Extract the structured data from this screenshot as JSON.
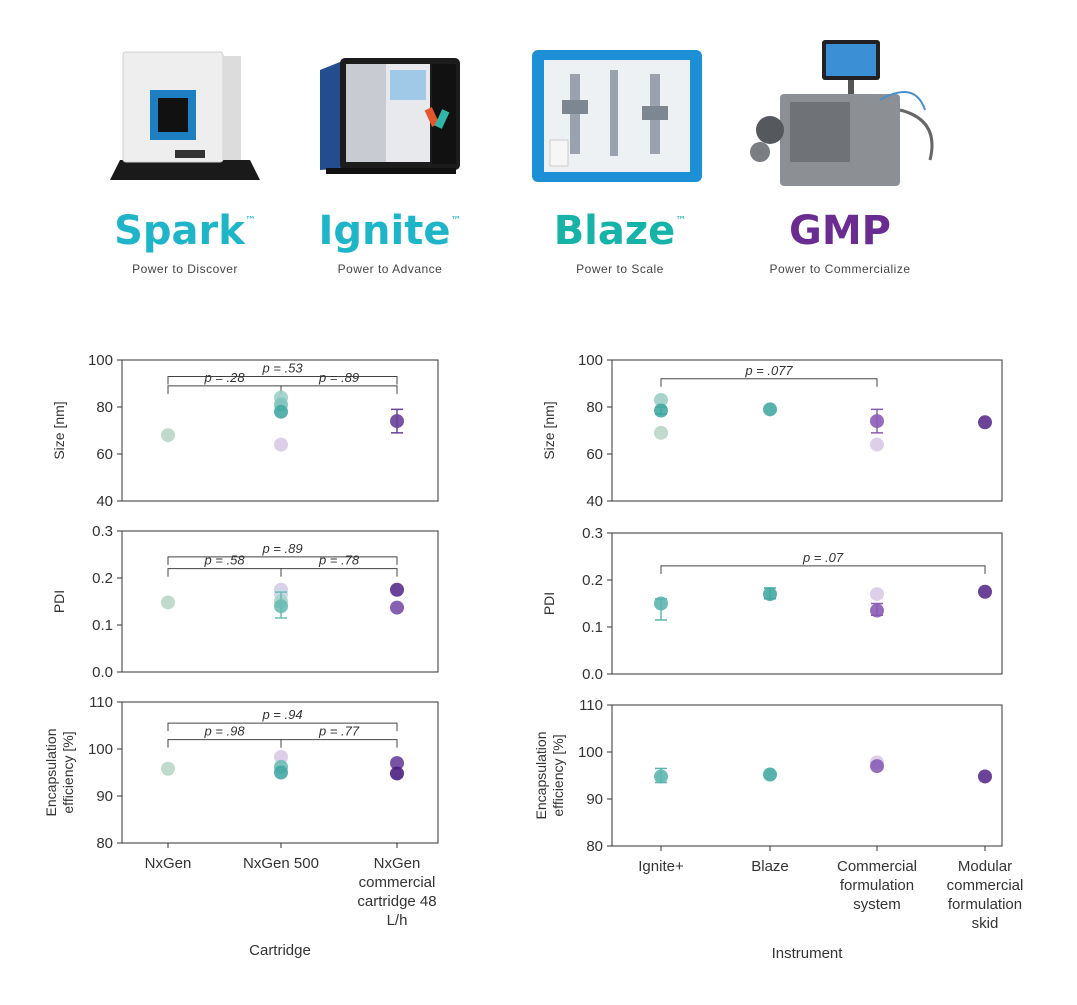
{
  "products": [
    {
      "name": "Spark",
      "tm": "™",
      "tagline": "Power to Discover",
      "color": "#1fb5c9",
      "icon": "benchtop-instrument-icon"
    },
    {
      "name": "Ignite",
      "tm": "™",
      "tagline": "Power to Advance",
      "color": "#1fb5c9",
      "icon": "mixing-instrument-icon"
    },
    {
      "name": "Blaze",
      "tm": "™",
      "tagline": "Power to Scale",
      "color": "#17b3a9",
      "icon": "scale-up-instrument-icon"
    },
    {
      "name": "GMP",
      "tm": "",
      "tagline": "Power to Commercialize",
      "color": "#6a2c91",
      "icon": "gmp-system-icon"
    }
  ],
  "chart_data": [
    {
      "type": "scatter",
      "ylabel": "Size [nm]",
      "ylim": [
        40,
        100
      ],
      "yticks": [
        40,
        60,
        80,
        100
      ],
      "categories": [
        "NxGen",
        "NxGen 500",
        "NxGen commercial cartridge 48 L/h"
      ],
      "points": [
        {
          "cat": 0,
          "y": 68,
          "color": "#b9d6c9"
        },
        {
          "cat": 1,
          "y": 84,
          "color": "#9ccfc4"
        },
        {
          "cat": 1,
          "y": 81,
          "color": "#7fc3bd"
        },
        {
          "cat": 1,
          "y": 78,
          "color": "#45a9a3"
        },
        {
          "cat": 1,
          "y": 64,
          "color": "#d8cbe6"
        },
        {
          "cat": 2,
          "y": 74,
          "color": "#6a4099",
          "err": [
            69,
            79
          ]
        }
      ],
      "brackets": [
        {
          "from": 0,
          "to": 2,
          "y": 93,
          "label": "p = .53"
        },
        {
          "from": 0,
          "to": 1,
          "y": 89,
          "label": "p = .28"
        },
        {
          "from": 1,
          "to": 2,
          "y": 89,
          "label": "p = .89"
        }
      ]
    },
    {
      "type": "scatter",
      "ylabel": "PDI",
      "ylim": [
        0.0,
        0.3
      ],
      "yticks": [
        0.0,
        0.1,
        0.2,
        0.3
      ],
      "categories": [
        "NxGen",
        "NxGen 500",
        "NxGen commercial cartridge 48 L/h"
      ],
      "points": [
        {
          "cat": 0,
          "y": 0.148,
          "color": "#b9d6c9"
        },
        {
          "cat": 1,
          "y": 0.175,
          "color": "#d8cbe6"
        },
        {
          "cat": 1,
          "y": 0.165,
          "color": "#c9d9e6"
        },
        {
          "cat": 1,
          "y": 0.15,
          "color": "#a6d4cd"
        },
        {
          "cat": 1,
          "y": 0.14,
          "color": "#6cbbb4",
          "err": [
            0.115,
            0.17
          ]
        },
        {
          "cat": 2,
          "y": 0.175,
          "color": "#5a2e8c"
        },
        {
          "cat": 2,
          "y": 0.137,
          "color": "#7a4fa8"
        }
      ],
      "brackets": [
        {
          "from": 0,
          "to": 2,
          "y": 0.245,
          "label": "p = .89"
        },
        {
          "from": 0,
          "to": 1,
          "y": 0.22,
          "label": "p = .58"
        },
        {
          "from": 1,
          "to": 2,
          "y": 0.22,
          "label": "p = .78"
        }
      ]
    },
    {
      "type": "scatter",
      "ylabel": "Encapsulation efficiency [%]",
      "ylim": [
        80,
        110
      ],
      "yticks": [
        80,
        90,
        100,
        110
      ],
      "categories": [
        "NxGen",
        "NxGen 500",
        "NxGen commercial cartridge 48 L/h"
      ],
      "points": [
        {
          "cat": 0,
          "y": 95.8,
          "color": "#b9d6c9"
        },
        {
          "cat": 1,
          "y": 98.3,
          "color": "#d8cbe6"
        },
        {
          "cat": 1,
          "y": 96.2,
          "color": "#6cbbb4"
        },
        {
          "cat": 1,
          "y": 95,
          "color": "#45a9a3"
        },
        {
          "cat": 2,
          "y": 97,
          "color": "#6a4099"
        },
        {
          "cat": 2,
          "y": 94.8,
          "color": "#4a2080"
        }
      ],
      "brackets": [
        {
          "from": 0,
          "to": 2,
          "y": 105.5,
          "label": "p = .94"
        },
        {
          "from": 0,
          "to": 1,
          "y": 102,
          "label": "p = .98"
        },
        {
          "from": 1,
          "to": 2,
          "y": 102,
          "label": "p = .77"
        }
      ],
      "xlabel": "Cartridge"
    },
    {
      "type": "scatter",
      "ylabel": "Size [nm]",
      "ylim": [
        40,
        100
      ],
      "yticks": [
        40,
        60,
        80,
        100
      ],
      "categories": [
        "Ignite+",
        "Blaze",
        "Commercial formulation system",
        "Modular commercial formulation skid"
      ],
      "points": [
        {
          "cat": 0,
          "y": 83,
          "color": "#9ccfc4"
        },
        {
          "cat": 0,
          "y": 78.5,
          "color": "#45a9a3",
          "err": [
            77,
            80
          ]
        },
        {
          "cat": 0,
          "y": 69,
          "color": "#b9d6c9"
        },
        {
          "cat": 1,
          "y": 79,
          "color": "#45a9a3"
        },
        {
          "cat": 2,
          "y": 74,
          "color": "#8a5db5",
          "err": [
            69,
            79
          ]
        },
        {
          "cat": 2,
          "y": 64,
          "color": "#d8cbe6"
        },
        {
          "cat": 3,
          "y": 73.5,
          "color": "#5a2e8c"
        }
      ],
      "brackets": [
        {
          "from": 0,
          "to": 2,
          "y": 92,
          "label": "p = .077"
        }
      ]
    },
    {
      "type": "scatter",
      "ylabel": "PDI",
      "ylim": [
        0.0,
        0.3
      ],
      "yticks": [
        0.0,
        0.1,
        0.2,
        0.3
      ],
      "categories": [
        "Ignite+",
        "Blaze",
        "Commercial formulation system",
        "Modular commercial formulation skid"
      ],
      "points": [
        {
          "cat": 0,
          "y": 0.15,
          "color": "#5db5af",
          "err": [
            0.115,
            0.16
          ]
        },
        {
          "cat": 1,
          "y": 0.17,
          "color": "#45a9a3",
          "err": [
            0.16,
            0.183
          ]
        },
        {
          "cat": 2,
          "y": 0.17,
          "color": "#d8cbe6"
        },
        {
          "cat": 2,
          "y": 0.135,
          "color": "#8a5db5",
          "err": [
            0.125,
            0.15
          ]
        },
        {
          "cat": 3,
          "y": 0.175,
          "color": "#5a2e8c"
        }
      ],
      "brackets": [
        {
          "from": 0,
          "to": 3,
          "y": 0.23,
          "label": "p = .07"
        }
      ]
    },
    {
      "type": "scatter",
      "ylabel": "Encapsulation efficiency [%]",
      "ylim": [
        80,
        110
      ],
      "yticks": [
        80,
        90,
        100,
        110
      ],
      "categories": [
        "Ignite+",
        "Blaze",
        "Commercial formulation system",
        "Modular commercial formulation skid"
      ],
      "points": [
        {
          "cat": 0,
          "y": 94.8,
          "color": "#5db5af",
          "err": [
            93.5,
            96.5
          ]
        },
        {
          "cat": 1,
          "y": 95.2,
          "color": "#45a9a3"
        },
        {
          "cat": 2,
          "y": 97.8,
          "color": "#d8cbe6"
        },
        {
          "cat": 2,
          "y": 97,
          "color": "#8a5db5"
        },
        {
          "cat": 3,
          "y": 94.8,
          "color": "#5a2e8c"
        }
      ],
      "brackets": [],
      "xlabel": "Instrument"
    }
  ]
}
